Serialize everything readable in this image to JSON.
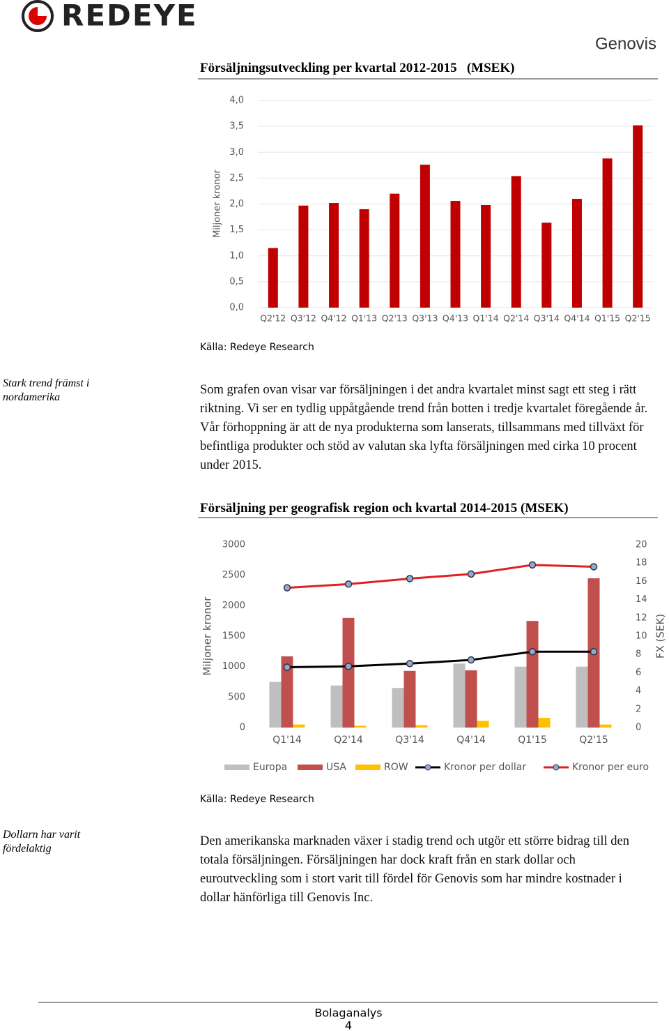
{
  "header": {
    "logo": "REDEYE",
    "company": "Genovis"
  },
  "chart_data": [
    {
      "type": "bar",
      "title": "Försäljningsutveckling per kvartal 2012-2015   (MSEK)",
      "ylabel": "Miljoner kronor",
      "color": "#c00000",
      "grid": true,
      "categories": [
        "Q2'12",
        "Q3'12",
        "Q4'12",
        "Q1'13",
        "Q2'13",
        "Q3'13",
        "Q4'13",
        "Q1'14",
        "Q2'14",
        "Q3'14",
        "Q4'14",
        "Q1'15",
        "Q2'15"
      ],
      "values": [
        1.15,
        1.97,
        2.02,
        1.9,
        2.2,
        2.76,
        2.06,
        1.98,
        2.54,
        1.64,
        2.1,
        2.88,
        3.52
      ],
      "ylim": [
        0,
        4
      ],
      "yticks": [
        {
          "value": 0,
          "label": "0,0"
        },
        {
          "value": 0.5,
          "label": "0,5"
        },
        {
          "value": 1,
          "label": "1,0"
        },
        {
          "value": 1.5,
          "label": "1,5"
        },
        {
          "value": 2,
          "label": "2,0"
        },
        {
          "value": 2.5,
          "label": "2,5"
        },
        {
          "value": 3,
          "label": "3,0"
        },
        {
          "value": 3.5,
          "label": "3,5"
        },
        {
          "value": 4,
          "label": "4,0"
        }
      ],
      "source": "Källa: Redeye Research"
    },
    {
      "type": "combo",
      "title": "Försäljning per geografisk region och kvartal 2014-2015 (MSEK)",
      "ylabel": "Miljoner kronor",
      "y2label": "FX (SEK)",
      "grid": false,
      "categories": [
        "Q1'14",
        "Q2'14",
        "Q3'14",
        "Q4'14",
        "Q1'15",
        "Q2'15"
      ],
      "series": [
        {
          "name": "Europa",
          "type": "bar",
          "color": "#bfbfbf",
          "values": [
            750,
            690,
            650,
            1050,
            1000,
            1000
          ]
        },
        {
          "name": "USA",
          "type": "bar",
          "color": "#c0504d",
          "values": [
            1170,
            1800,
            930,
            940,
            1750,
            2450
          ]
        },
        {
          "name": "ROW",
          "type": "bar",
          "color": "#ffc000",
          "values": [
            50,
            30,
            40,
            110,
            160,
            50
          ]
        },
        {
          "name": "Kronor per dollar",
          "type": "line",
          "axis": "y2",
          "color": "#000000",
          "values": [
            6.6,
            6.7,
            7.0,
            7.4,
            8.3,
            8.3
          ]
        },
        {
          "name": "Kronor per euro",
          "type": "line",
          "axis": "y2",
          "color": "#e02020",
          "values": [
            15.3,
            15.7,
            16.3,
            16.8,
            17.8,
            17.6
          ]
        }
      ],
      "ylim": [
        0,
        3000
      ],
      "yticks": [
        0,
        500,
        1000,
        1500,
        2000,
        2500,
        3000
      ],
      "y2lim": [
        0,
        20
      ],
      "y2ticks": [
        0,
        2,
        4,
        6,
        8,
        10,
        12,
        14,
        16,
        18,
        20
      ],
      "source": "Källa: Redeye Research"
    }
  ],
  "sections": [
    {
      "sidenote": "Stark trend främst i nordamerika",
      "text": "Som grafen ovan visar var försäljningen i det andra kvartalet minst sagt ett steg i rätt riktning. Vi ser en tydlig uppåtgående trend från botten i tredje kvartalet föregående år. Vår förhoppning är att de nya produkterna som lanserats, tillsammans med tillväxt för befintliga produkter och stöd av valutan ska lyfta försäljningen med cirka 10 procent under 2015."
    },
    {
      "sidenote": "Dollarn har varit fördelaktig",
      "text": "Den amerikanska marknaden växer i stadig trend och utgör ett större bidrag till den totala försäljningen. Försäljningen har dock kraft från en stark dollar och euroutveckling som i stort varit till fördel för Genovis som har mindre kostnader i dollar hänförliga till Genovis Inc."
    }
  ],
  "footer": {
    "label": "Bolaganalys",
    "page": "4"
  }
}
